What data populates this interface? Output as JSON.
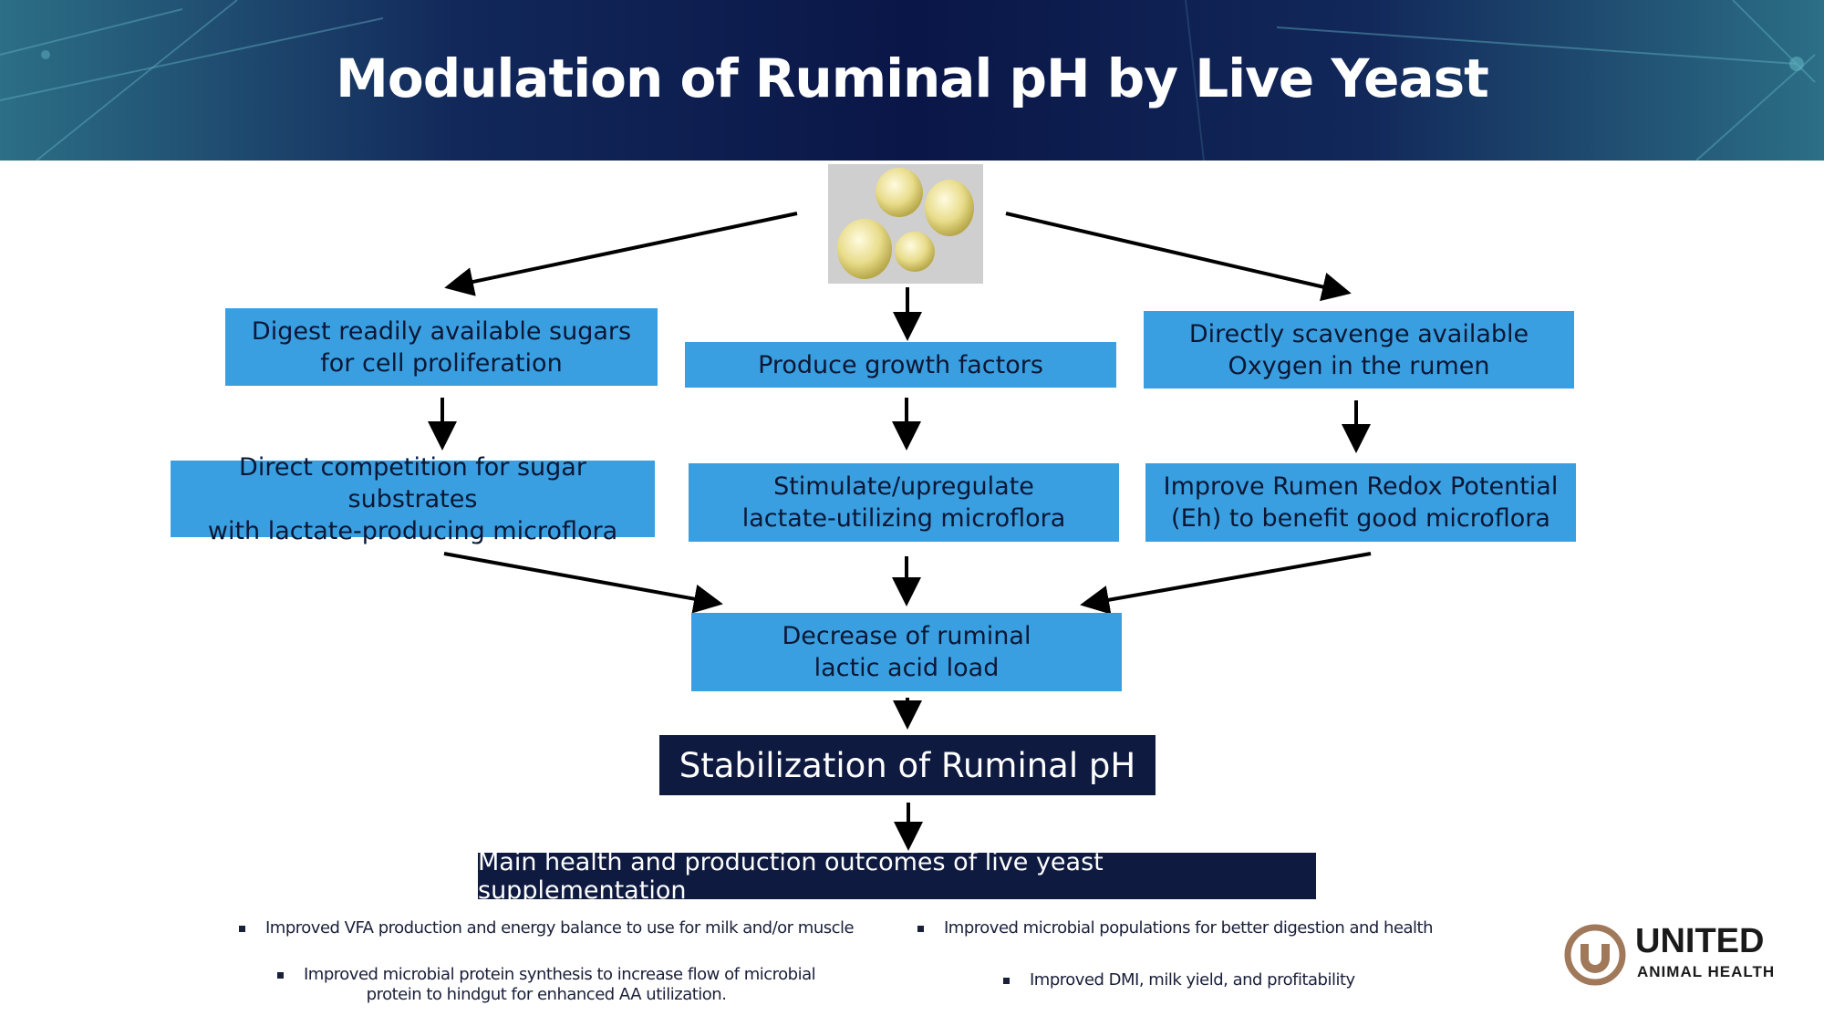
{
  "title": "Modulation of Ruminal pH by Live Yeast",
  "colors": {
    "box": "#3a9fe0",
    "dark_box": "#0f1a40",
    "header": "#0a1647",
    "logo_brown": "#a0785a"
  },
  "image": {
    "icon": "yeast-cells-image"
  },
  "row1": [
    {
      "line1": "Digest readily available sugars",
      "line2": "for cell proliferation"
    },
    {
      "line1": "Produce growth factors"
    },
    {
      "line1": "Directly scavenge available",
      "line2": "Oxygen in the rumen"
    }
  ],
  "row2": [
    {
      "line1": "Direct competition for sugar substrates",
      "line2": "with lactate-producing microflora"
    },
    {
      "line1": "Stimulate/upregulate",
      "line2": "lactate-utilizing microflora"
    },
    {
      "line1": "Improve Rumen Redox Potential",
      "line2": "(Eh) to benefit good microflora"
    }
  ],
  "decrease": {
    "line1": "Decrease of ruminal",
    "line2": "lactic acid load"
  },
  "stabilization": "Stabilization of Ruminal pH",
  "outcomes_title": "Main health and production outcomes of live yeast supplementation",
  "outcomes": [
    "Improved VFA production and energy balance to use for milk and/or muscle",
    "Improved microbial populations for better digestion and health",
    {
      "line1": "Improved microbial protein synthesis to increase flow of microbial",
      "line2": "protein to hindgut for enhanced AA utilization."
    },
    "Improved DMI, milk yield, and profitability"
  ],
  "logo": {
    "line1": "UNITED",
    "line2": "ANIMAL HEALTH"
  }
}
